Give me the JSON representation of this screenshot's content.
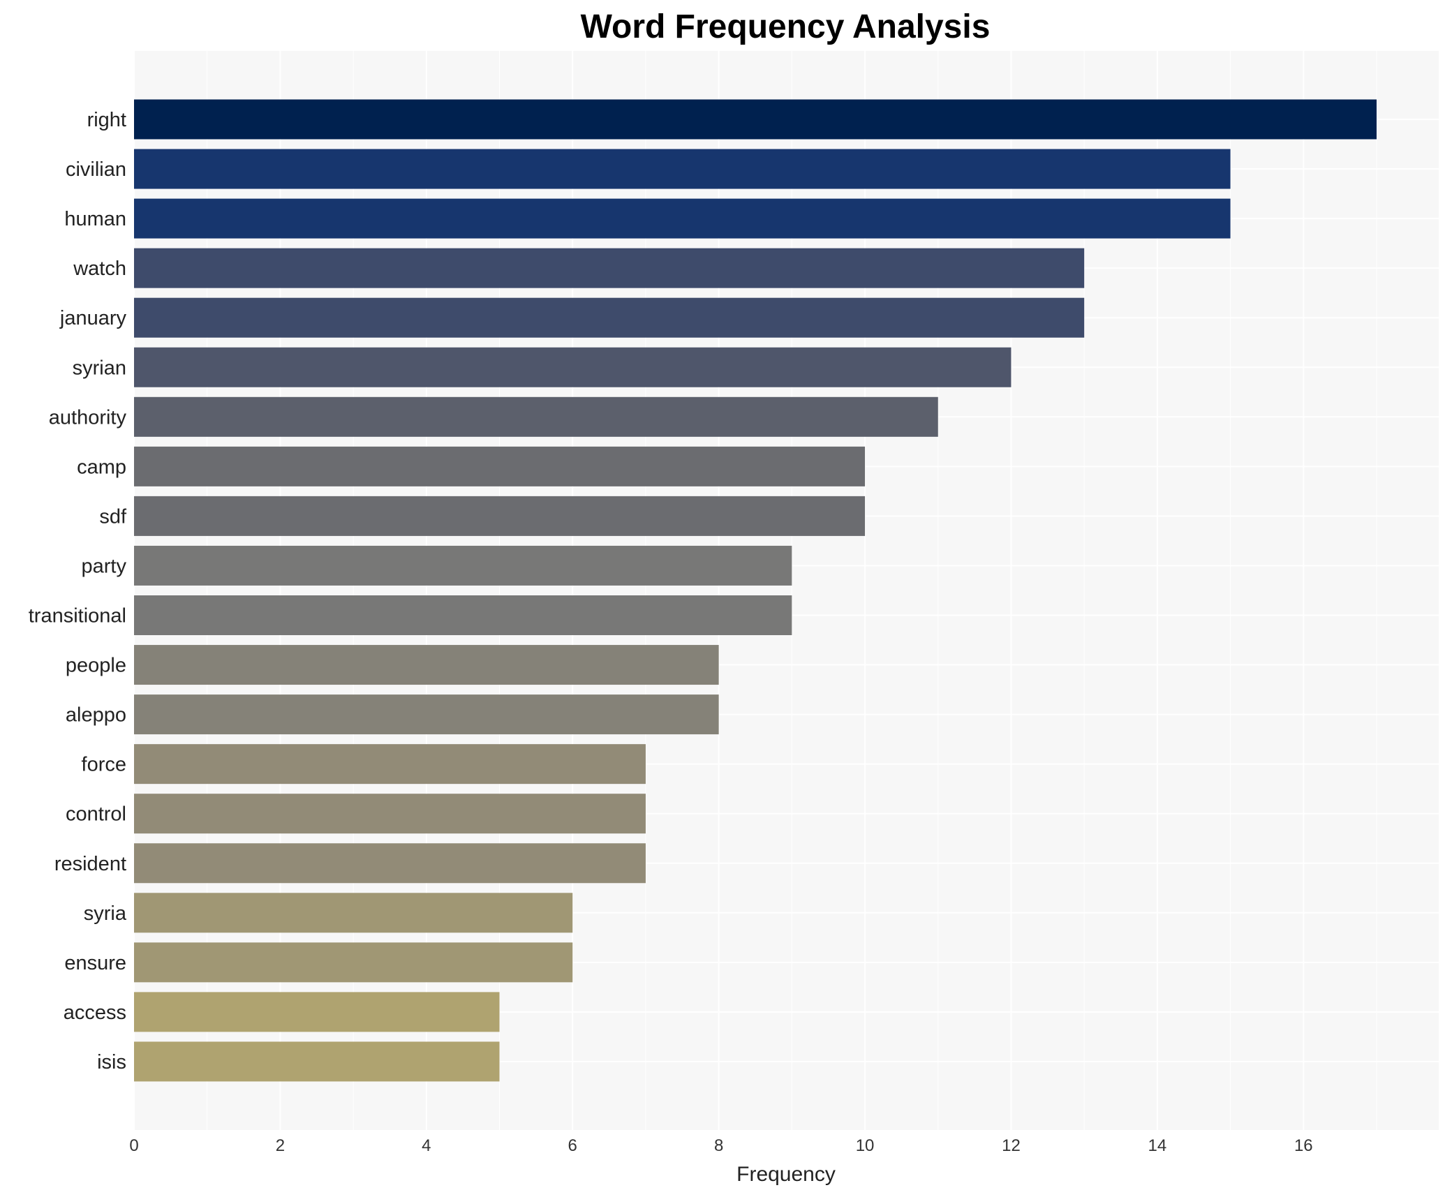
{
  "chart_data": {
    "type": "bar",
    "orientation": "horizontal",
    "title": "Word Frequency Analysis",
    "xlabel": "Frequency",
    "ylabel": "",
    "xlim": [
      0,
      17.85
    ],
    "xticks": [
      0,
      2,
      4,
      6,
      8,
      10,
      12,
      14,
      16
    ],
    "grid": true,
    "categories": [
      "right",
      "civilian",
      "human",
      "watch",
      "january",
      "syrian",
      "authority",
      "camp",
      "sdf",
      "party",
      "transitional",
      "people",
      "aleppo",
      "force",
      "control",
      "resident",
      "syria",
      "ensure",
      "access",
      "isis"
    ],
    "values": [
      17,
      15,
      15,
      13,
      13,
      12,
      11,
      10,
      10,
      9,
      9,
      8,
      8,
      7,
      7,
      7,
      6,
      6,
      5,
      5
    ],
    "colors": [
      "#00214f",
      "#17366e",
      "#17366e",
      "#3e4b6b",
      "#3e4b6b",
      "#4f566b",
      "#5c606c",
      "#6b6c70",
      "#6b6c70",
      "#787877",
      "#787877",
      "#858278",
      "#858278",
      "#928b77",
      "#928b77",
      "#928b77",
      "#a09774",
      "#a09774",
      "#afa370",
      "#afa370"
    ],
    "background": "#f7f7f7"
  }
}
